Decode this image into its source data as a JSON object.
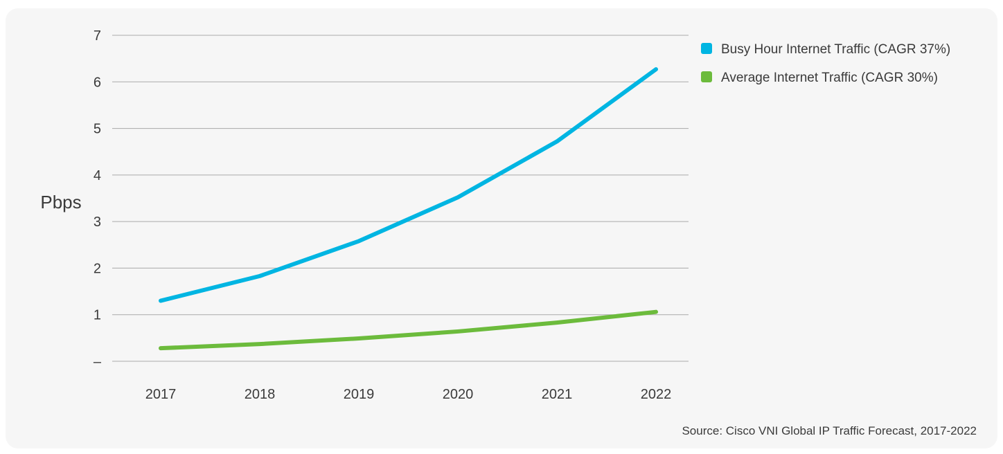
{
  "chart_data": {
    "type": "line",
    "xlabel": "",
    "ylabel": "Pbps",
    "ylim": [
      0,
      7
    ],
    "yticks": [
      "–",
      "1",
      "2",
      "3",
      "4",
      "5",
      "6",
      "7"
    ],
    "categories": [
      "2017",
      "2018",
      "2019",
      "2020",
      "2021",
      "2022"
    ],
    "series": [
      {
        "name": "Busy Hour Internet Traffic (CAGR 37%)",
        "color": "#00b5e2",
        "values": [
          1.3,
          1.83,
          2.58,
          3.52,
          4.72,
          6.27
        ]
      },
      {
        "name": "Average Internet Traffic (CAGR 30%)",
        "color": "#6cbb3c",
        "values": [
          0.28,
          0.37,
          0.49,
          0.64,
          0.83,
          1.06
        ]
      }
    ],
    "grid": true,
    "legend_position": "top-right",
    "source": "Source: Cisco VNI Global IP Traffic Forecast, 2017-2022"
  }
}
